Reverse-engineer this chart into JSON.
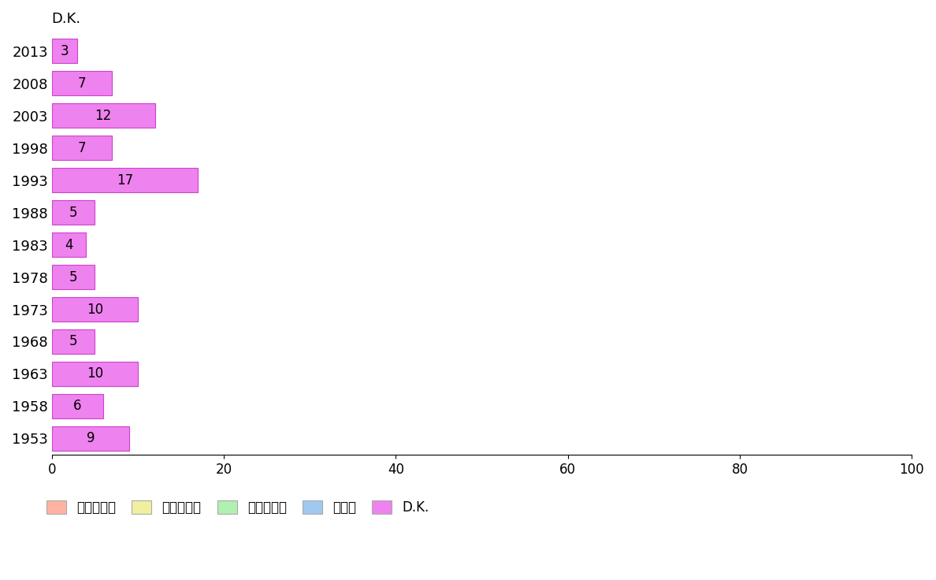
{
  "years": [
    "2013",
    "2008",
    "2003",
    "1998",
    "1993",
    "1988",
    "1983",
    "1978",
    "1973",
    "1968",
    "1963",
    "1958",
    "1953"
  ],
  "dk_values": [
    3,
    7,
    12,
    7,
    17,
    5,
    4,
    5,
    10,
    5,
    10,
    6,
    9
  ],
  "bar_color": "#ee82ee",
  "bar_edgecolor": "#cc44cc",
  "xlim": [
    0,
    100
  ],
  "xticks": [
    0,
    20,
    40,
    60,
    80,
    100
  ],
  "column_label": "D.K.",
  "legend_labels": [
    "自然に従え",
    "自然を利用",
    "自然を征服",
    "その他",
    "D.K."
  ],
  "legend_colors": [
    "#ffb3a0",
    "#f0f0a0",
    "#b0f0b0",
    "#a0c8f0",
    "#ee82ee"
  ],
  "background_color": "#ffffff",
  "bar_height": 0.75,
  "label_fontsize": 13,
  "tick_fontsize": 12,
  "legend_fontsize": 12,
  "value_fontsize": 12
}
